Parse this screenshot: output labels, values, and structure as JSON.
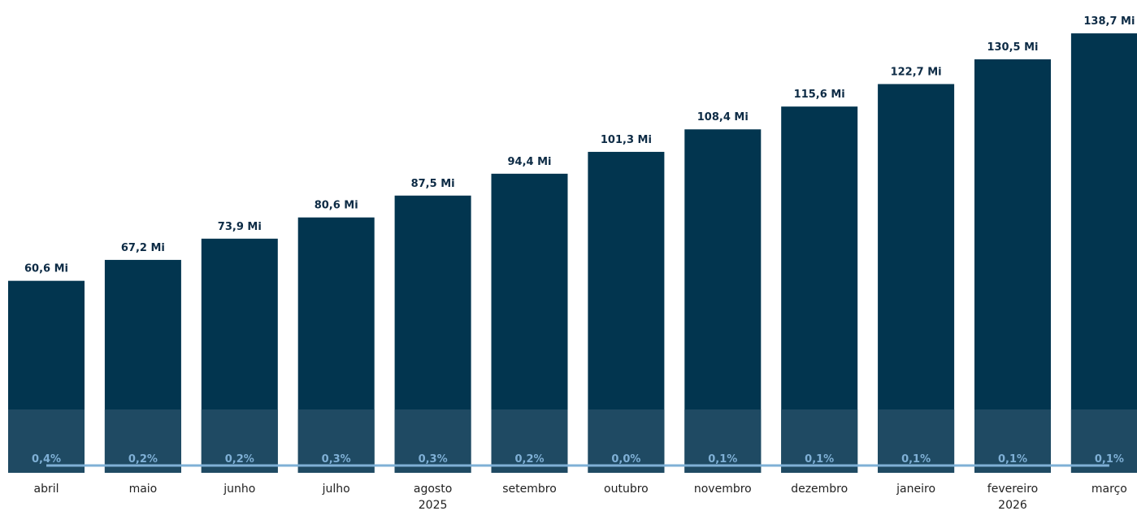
{
  "chart_data": {
    "type": "bar",
    "title": "",
    "xlabel": "",
    "ylabel": "",
    "categories": [
      "abril",
      "maio",
      "junho",
      "julho",
      "agosto",
      "setembro",
      "outubro",
      "novembro",
      "dezembro",
      "janeiro",
      "fevereiro",
      "março"
    ],
    "year_labels": [
      {
        "category_index": 4,
        "label": "2025"
      },
      {
        "category_index": 10,
        "label": "2026"
      }
    ],
    "series": [
      {
        "values": [
          60.6,
          67.2,
          73.9,
          80.6,
          87.5,
          94.4,
          101.3,
          108.4,
          115.6,
          122.7,
          130.5,
          138.7
        ],
        "labels": [
          "60,6 Mi",
          "67,2 Mi",
          "73,9 Mi",
          "80,6 Mi",
          "87,5 Mi",
          "94,4 Mi",
          "101,3 Mi",
          "108,4 Mi",
          "115,6 Mi",
          "122,7 Mi",
          "130,5 Mi",
          "138,7 Mi"
        ],
        "color": "#02354f"
      },
      {
        "type": "line",
        "values": [
          0.4,
          0.2,
          0.2,
          0.3,
          0.3,
          0.2,
          0.0,
          0.1,
          0.1,
          0.1,
          0.1,
          0.1
        ],
        "labels": [
          "0,4%",
          "0,2%",
          "0,2%",
          "0,3%",
          "0,3%",
          "0,2%",
          "0,0%",
          "0,1%",
          "0,1%",
          "0,1%",
          "0,1%",
          "0,1%"
        ],
        "color": "#7fb0d6"
      }
    ],
    "ylim": [
      0,
      140
    ],
    "grid": false,
    "legend": "none"
  },
  "colors": {
    "bar": "#02354f",
    "bar_overlay": "#1f4a63",
    "line": "#7fb0d6",
    "value_label": "#0d2b45",
    "axis_text": "#222222"
  }
}
